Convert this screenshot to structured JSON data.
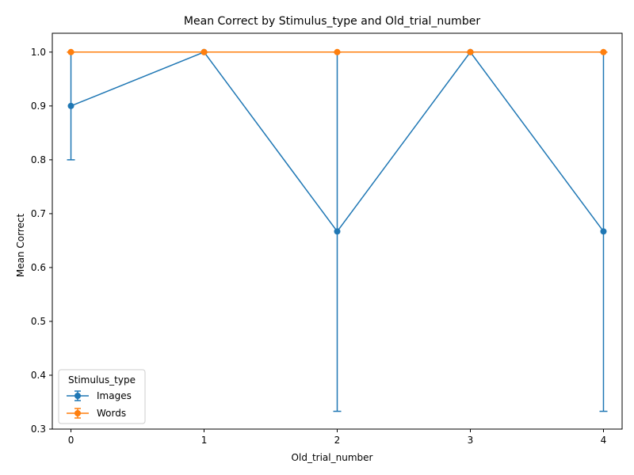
{
  "chart_data": {
    "type": "line",
    "title": "Mean Correct by Stimulus_type and Old_trial_number",
    "xlabel": "Old_trial_number",
    "ylabel": "Mean Correct",
    "x": [
      0,
      1,
      2,
      3,
      4
    ],
    "xlim": [
      -0.14,
      4.14
    ],
    "ylim": [
      0.3,
      1.035
    ],
    "xticks": [
      "0",
      "1",
      "2",
      "3",
      "4"
    ],
    "yticks": [
      "0.3",
      "0.4",
      "0.5",
      "0.6",
      "0.7",
      "0.8",
      "0.9",
      "1.0"
    ],
    "grid": false,
    "legend": {
      "title": "Stimulus_type",
      "position": "lower-left"
    },
    "series": [
      {
        "name": "Images",
        "color": "#1f77b4",
        "values": [
          0.9,
          1.0,
          0.667,
          1.0,
          0.667
        ],
        "error_low": [
          0.8,
          1.0,
          0.333,
          1.0,
          0.333
        ],
        "error_high": [
          1.0,
          1.0,
          1.0,
          1.0,
          1.0
        ]
      },
      {
        "name": "Words",
        "color": "#ff7f0e",
        "values": [
          1.0,
          1.0,
          1.0,
          1.0,
          1.0
        ],
        "error_low": [
          1.0,
          1.0,
          1.0,
          1.0,
          1.0
        ],
        "error_high": [
          1.0,
          1.0,
          1.0,
          1.0,
          1.0
        ]
      }
    ]
  }
}
